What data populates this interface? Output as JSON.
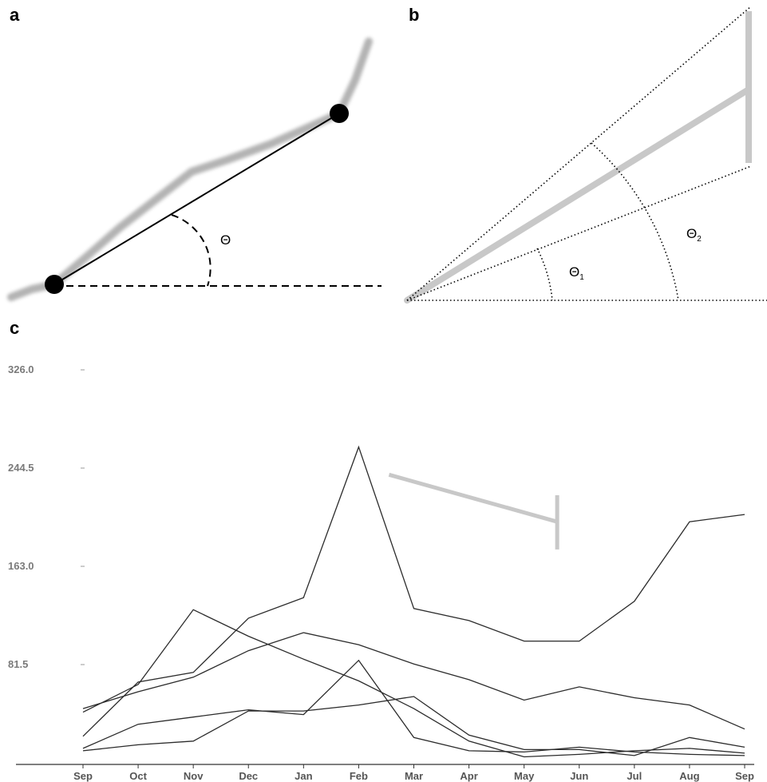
{
  "panels": {
    "a": {
      "label": "a",
      "angle_label": "Θ"
    },
    "b": {
      "label": "b",
      "angle1_label": "Θ",
      "angle1_sub": "1",
      "angle2_label": "Θ",
      "angle2_sub": "2"
    },
    "c": {
      "label": "c"
    }
  },
  "colors": {
    "line": "#2b2b2b",
    "highlight": "#c8c8c8",
    "axis": "#333333",
    "tick_text": "#7a7a7a"
  },
  "chart_data": {
    "type": "line",
    "categories": [
      "Sep",
      "Oct",
      "Nov",
      "Dec",
      "Jan",
      "Feb",
      "Mar",
      "Apr",
      "May",
      "Jun",
      "Jul",
      "Aug",
      "Sep"
    ],
    "y_ticks": [
      "326.0",
      "244.5",
      "163.0",
      "81.5"
    ],
    "ylim": [
      0,
      326
    ],
    "grid": false,
    "series": [
      {
        "values": [
          22,
          67,
          75,
          120,
          137,
          262,
          128,
          118,
          101,
          101,
          134,
          200,
          206
        ]
      },
      {
        "values": [
          42,
          65,
          127,
          105,
          86,
          68,
          45,
          18,
          5,
          7,
          10,
          12,
          8
        ]
      },
      {
        "values": [
          45,
          59,
          71,
          93,
          108,
          98,
          82,
          69,
          52,
          63,
          54,
          48,
          28
        ]
      },
      {
        "values": [
          12,
          32,
          38,
          44,
          40,
          85,
          21,
          10,
          9,
          13,
          9,
          7,
          6
        ]
      },
      {
        "values": [
          10,
          15,
          18,
          43,
          43,
          48,
          55,
          23,
          11,
          11,
          6,
          21,
          13
        ]
      }
    ],
    "highlight_marker": {
      "x_start": 5.55,
      "y_start": 239,
      "x_end": 8.6,
      "y_end": 200,
      "bar_y_top": 222,
      "bar_y_bottom": 177
    }
  }
}
